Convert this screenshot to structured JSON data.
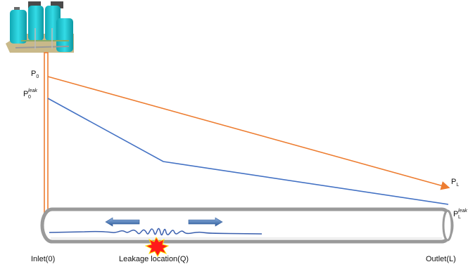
{
  "labels": {
    "p0_base": "P",
    "p0_sub": "0",
    "p0leak_base": "P",
    "p0leak_sub": "0",
    "p0leak_sup": "leak",
    "pl_base": "P",
    "pl_sub": "L",
    "plleak_base": "P",
    "plleak_sub": "L",
    "plleak_sup": "leak",
    "inlet": "Inlet(0)",
    "leak_location": "Leakage location(Q)",
    "outlet": "Outlet(L)"
  },
  "colors": {
    "normal_pressure_line": "#ED7D31",
    "leak_pressure_line": "#4472C4",
    "pipe": "#9a9a9a",
    "wave": "#3a5fae",
    "leak_burst": "#ff1a1a",
    "tank": "#1fc3cf"
  },
  "icons": {
    "station": "pumping-station-icon",
    "leak": "leak-burst-icon"
  }
}
